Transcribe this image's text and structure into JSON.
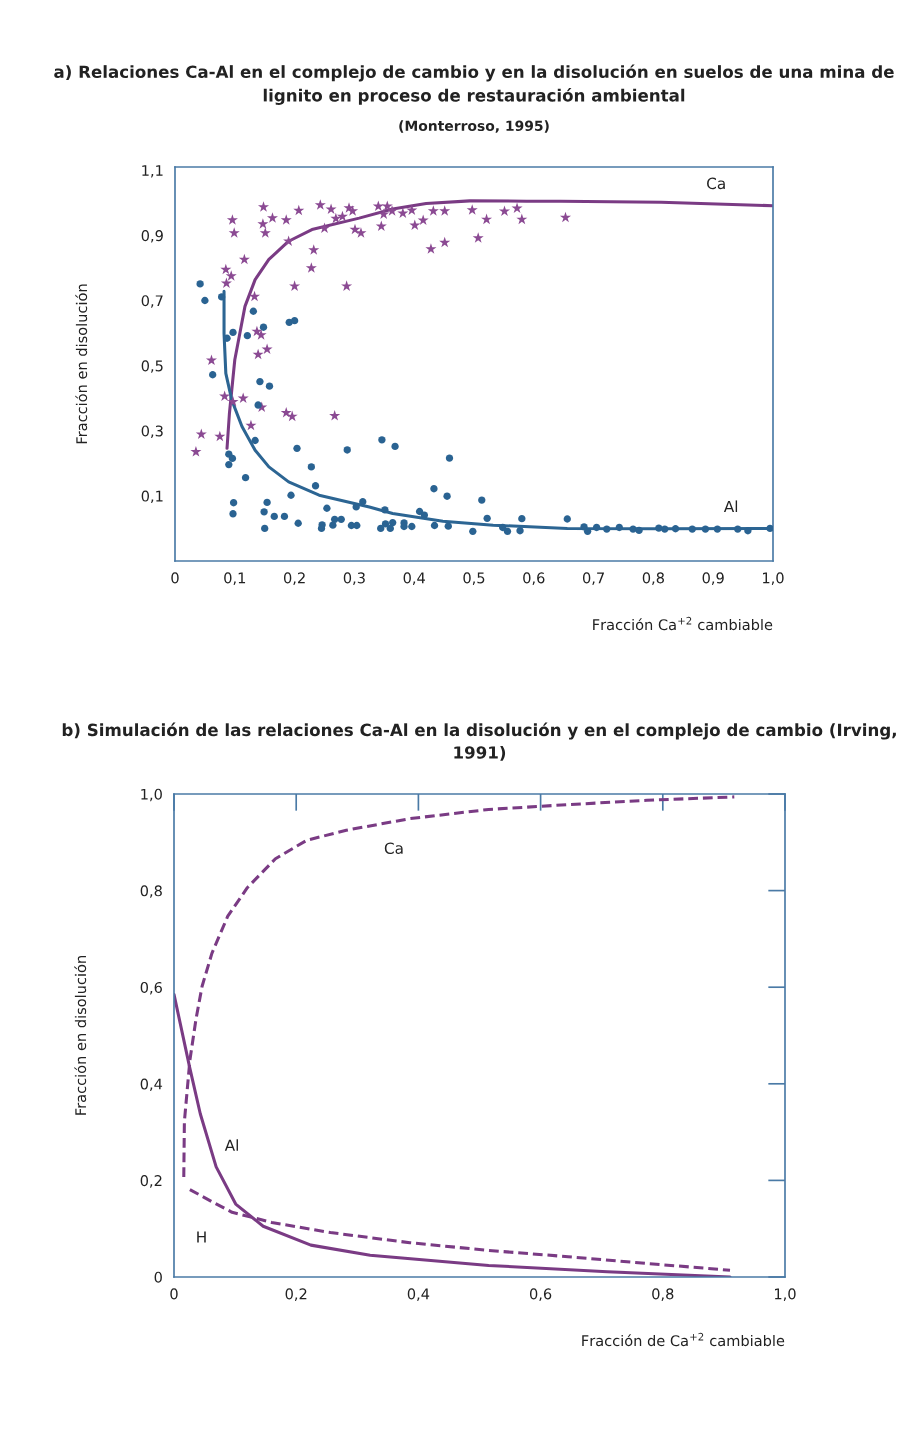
{
  "chart_data": [
    {
      "type": "scatter",
      "title": "a) Relaciones Ca-Al en el complejo de cambio y en la disolución en suelos de una mina de lignito en proceso de restauración ambiental",
      "subtitle": "(Monterroso, 1995)",
      "xlabel": "Fracción Ca$^{+2}$ cambiable",
      "ylabel": "Fracción en disolución",
      "xlim": [
        0,
        1.0
      ],
      "ylim": [
        -0.1,
        1.11
      ],
      "xticks": [
        {
          "value": 0,
          "label": "0"
        },
        {
          "value": 0.1,
          "label": "0,1"
        },
        {
          "value": 0.2,
          "label": "0,2"
        },
        {
          "value": 0.3,
          "label": "0,3"
        },
        {
          "value": 0.4,
          "label": "0,4"
        },
        {
          "value": 0.5,
          "label": "0,5"
        },
        {
          "value": 0.6,
          "label": "0,6"
        },
        {
          "value": 0.7,
          "label": "0,7"
        },
        {
          "value": 0.8,
          "label": "0,8"
        },
        {
          "value": 0.9,
          "label": "0,9"
        },
        {
          "value": 1.0,
          "label": "1,0"
        }
      ],
      "yticks": [
        {
          "value": 0.1,
          "label": "0,1"
        },
        {
          "value": 0.3,
          "label": "0,3"
        },
        {
          "value": 0.5,
          "label": "0,5"
        },
        {
          "value": 0.7,
          "label": "0,7"
        },
        {
          "value": 0.9,
          "label": "0,9"
        },
        {
          "value": 1.1,
          "label": "1,1"
        }
      ],
      "series": [
        {
          "type": "scatter",
          "marker": "star",
          "color": "#8b4a93",
          "x": [
            0.148,
            0.096,
            0.099,
            0.147,
            0.151,
            0.163,
            0.186,
            0.207,
            0.243,
            0.261,
            0.291,
            0.297,
            0.269,
            0.28,
            0.301,
            0.311,
            0.19,
            0.25,
            0.232,
            0.228,
            0.116,
            0.085,
            0.094,
            0.086,
            0.2,
            0.287,
            0.133,
            0.137,
            0.144,
            0.154,
            0.139,
            0.061,
            0.083,
            0.114,
            0.097,
            0.145,
            0.186,
            0.196,
            0.267,
            0.127,
            0.044,
            0.075,
            0.035,
            0.34,
            0.355,
            0.349,
            0.363,
            0.381,
            0.396,
            0.345,
            0.401,
            0.415,
            0.432,
            0.451,
            0.428,
            0.451,
            0.497,
            0.507,
            0.521,
            0.551,
            0.572,
            0.58,
            0.653
          ],
          "values": [
            0.987,
            0.947,
            0.907,
            0.935,
            0.907,
            0.953,
            0.947,
            0.976,
            0.993,
            0.98,
            0.984,
            0.975,
            0.952,
            0.958,
            0.918,
            0.907,
            0.882,
            0.922,
            0.855,
            0.8,
            0.826,
            0.795,
            0.775,
            0.753,
            0.744,
            0.744,
            0.712,
            0.605,
            0.594,
            0.55,
            0.534,
            0.516,
            0.406,
            0.4,
            0.389,
            0.372,
            0.355,
            0.344,
            0.346,
            0.316,
            0.289,
            0.282,
            0.235,
            0.989,
            0.989,
            0.965,
            0.975,
            0.968,
            0.977,
            0.928,
            0.931,
            0.946,
            0.975,
            0.975,
            0.858,
            0.878,
            0.978,
            0.892,
            0.949,
            0.974,
            0.983,
            0.949,
            0.955
          ]
        },
        {
          "type": "scatter",
          "marker": "circle",
          "color": "#2a6392",
          "x": [
            0.042,
            0.05,
            0.078,
            0.131,
            0.087,
            0.097,
            0.121,
            0.148,
            0.191,
            0.2,
            0.063,
            0.142,
            0.158,
            0.139,
            0.134,
            0.204,
            0.288,
            0.09,
            0.096,
            0.09,
            0.118,
            0.228,
            0.235,
            0.194,
            0.098,
            0.097,
            0.154,
            0.149,
            0.15,
            0.166,
            0.183,
            0.206,
            0.254,
            0.246,
            0.245,
            0.267,
            0.264,
            0.278,
            0.295,
            0.304,
            0.303,
            0.314,
            0.346,
            0.368,
            0.459,
            0.433,
            0.455,
            0.513,
            0.351,
            0.409,
            0.417,
            0.352,
            0.364,
            0.36,
            0.344,
            0.383,
            0.383,
            0.396,
            0.434,
            0.457,
            0.498,
            0.522,
            0.548,
            0.556,
            0.577,
            0.58,
            0.656,
            0.684,
            0.69,
            0.705,
            0.722,
            0.743,
            0.766,
            0.776,
            0.809,
            0.819,
            0.837,
            0.865,
            0.887,
            0.907,
            0.941,
            0.958,
            0.995
          ],
          "values": [
            0.751,
            0.7,
            0.711,
            0.667,
            0.584,
            0.602,
            0.592,
            0.618,
            0.633,
            0.638,
            0.472,
            0.451,
            0.437,
            0.379,
            0.27,
            0.246,
            0.241,
            0.228,
            0.215,
            0.196,
            0.156,
            0.189,
            0.131,
            0.102,
            0.079,
            0.045,
            0.08,
            0.051,
            0.0,
            0.037,
            0.037,
            0.016,
            0.062,
            0.011,
            0.0,
            0.028,
            0.01,
            0.028,
            0.009,
            0.009,
            0.066,
            0.082,
            0.272,
            0.252,
            0.216,
            0.122,
            0.099,
            0.087,
            0.057,
            0.052,
            0.041,
            0.014,
            0.018,
            0.0,
            0.0,
            0.017,
            0.006,
            0.006,
            0.009,
            0.007,
            -0.009,
            0.031,
            0.003,
            -0.009,
            -0.007,
            0.03,
            0.029,
            0.005,
            -0.009,
            0.003,
            -0.002,
            0.003,
            -0.002,
            -0.006,
            0.001,
            -0.002,
            -0.001,
            -0.002,
            -0.002,
            -0.002,
            -0.002,
            -0.007,
            0.0
          ]
        },
        {
          "type": "line",
          "name": "Ca",
          "marker": "none",
          "line_style": "solid",
          "color": "#7a3b84",
          "x": [
            0.087,
            0.091,
            0.1,
            0.117,
            0.134,
            0.157,
            0.19,
            0.229,
            0.308,
            0.364,
            0.42,
            0.493,
            0.588,
            0.645,
            0.813,
            1.0
          ],
          "values": [
            0.246,
            0.353,
            0.518,
            0.682,
            0.764,
            0.826,
            0.882,
            0.918,
            0.953,
            0.981,
            0.998,
            1.006,
            1.005,
            1.005,
            1.002,
            0.991
          ]
        },
        {
          "type": "line",
          "name": "Al",
          "marker": "none",
          "line_style": "solid",
          "color": "#2c6593",
          "x": [
            0.082,
            0.082,
            0.085,
            0.095,
            0.112,
            0.134,
            0.157,
            0.19,
            0.241,
            0.325,
            0.364,
            0.448,
            0.532,
            0.656,
            0.813,
            1.0
          ],
          "values": [
            0.728,
            0.599,
            0.476,
            0.394,
            0.313,
            0.24,
            0.189,
            0.143,
            0.102,
            0.066,
            0.046,
            0.022,
            0.01,
            0.0,
            -0.001,
            0.0
          ]
        }
      ]
    },
    {
      "type": "line",
      "title": "b) Simulación de las relaciones Ca-Al en la disolución y en el complejo de cambio (Irving, 1991)",
      "xlabel": "Fracción de Ca$^{+2}$ cambiable",
      "ylabel": "Fracción en disolución",
      "xlim": [
        0,
        1.0
      ],
      "ylim": [
        0,
        1.0
      ],
      "xticks": [
        {
          "value": 0,
          "label": "0"
        },
        {
          "value": 0.2,
          "label": "0,2"
        },
        {
          "value": 0.4,
          "label": "0,4"
        },
        {
          "value": 0.6,
          "label": "0,6"
        },
        {
          "value": 0.8,
          "label": "0,8"
        },
        {
          "value": 1.0,
          "label": "1,0"
        }
      ],
      "yticks": [
        {
          "value": 0,
          "label": "0"
        },
        {
          "value": 0.2,
          "label": "0,2"
        },
        {
          "value": 0.4,
          "label": "0,4"
        },
        {
          "value": 0.6,
          "label": "0,6"
        },
        {
          "value": 0.8,
          "label": "0,8"
        },
        {
          "value": 1.0,
          "label": "1,0"
        }
      ],
      "series": [
        {
          "type": "line",
          "name": "Ca",
          "line_style": "dashed",
          "color": "#7a3b84",
          "x": [
            0.016,
            0.017,
            0.026,
            0.036,
            0.046,
            0.062,
            0.088,
            0.12,
            0.166,
            0.217,
            0.282,
            0.386,
            0.515,
            0.645,
            0.774,
            0.917
          ],
          "values": [
            0.207,
            0.322,
            0.449,
            0.534,
            0.602,
            0.67,
            0.747,
            0.806,
            0.866,
            0.904,
            0.925,
            0.949,
            0.968,
            0.978,
            0.987,
            0.994
          ]
        },
        {
          "type": "line",
          "name": "Al",
          "line_style": "solid",
          "color": "#7a3b84",
          "x": [
            0.0,
            0.026,
            0.043,
            0.069,
            0.101,
            0.146,
            0.224,
            0.321,
            0.515,
            0.709,
            0.91
          ],
          "values": [
            0.585,
            0.432,
            0.338,
            0.228,
            0.151,
            0.105,
            0.066,
            0.045,
            0.024,
            0.011,
            0.0
          ]
        },
        {
          "type": "line",
          "name": "H",
          "line_style": "dashed",
          "color": "#7a3b84",
          "x": [
            0.026,
            0.062,
            0.095,
            0.16,
            0.256,
            0.386,
            0.515,
            0.645,
            0.774,
            0.91
          ],
          "values": [
            0.181,
            0.156,
            0.134,
            0.113,
            0.092,
            0.071,
            0.055,
            0.042,
            0.028,
            0.014
          ]
        }
      ]
    }
  ]
}
